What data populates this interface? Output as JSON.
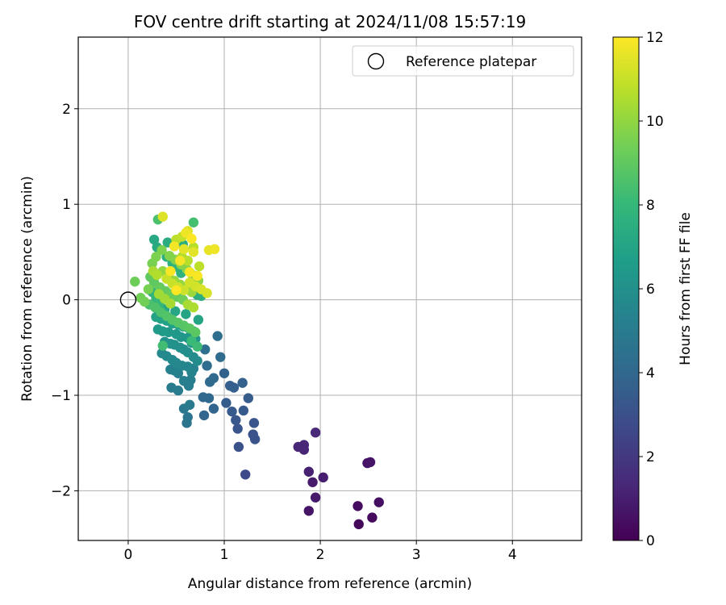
{
  "chart_data": {
    "type": "scatter",
    "title": "FOV centre drift starting at 2024/11/08 15:57:19",
    "xlabel": "Angular distance from reference (arcmin)",
    "ylabel": "Rotation from reference (arcmin)",
    "xlim": [
      -0.52,
      4.72
    ],
    "ylim": [
      -2.52,
      2.75
    ],
    "xticks": [
      0,
      1,
      2,
      3,
      4
    ],
    "yticks": [
      -2,
      -1,
      0,
      1,
      2
    ],
    "grid": true,
    "legend": {
      "location": "upper right",
      "entries": [
        "Reference platepar"
      ]
    },
    "reference_point": {
      "x": 0,
      "y": 0,
      "label": "Reference platepar"
    },
    "colorbar": {
      "label": "Hours from first FF file",
      "range": [
        0,
        12
      ],
      "ticks": [
        0,
        2,
        4,
        6,
        8,
        10,
        12
      ],
      "colormap": "viridis",
      "stops": [
        "#440154",
        "#482878",
        "#3e4989",
        "#31688e",
        "#26828e",
        "#1f9e89",
        "#35b779",
        "#6ece58",
        "#b5de2b",
        "#fde725"
      ]
    },
    "points": [
      [
        2.4,
        -2.35,
        0.2
      ],
      [
        2.54,
        -2.28,
        0.3
      ],
      [
        2.39,
        -2.16,
        0.4
      ],
      [
        2.61,
        -2.12,
        0.5
      ],
      [
        1.95,
        -2.07,
        0.8
      ],
      [
        1.88,
        -2.21,
        0.7
      ],
      [
        1.92,
        -1.91,
        0.9
      ],
      [
        2.03,
        -1.86,
        1.0
      ],
      [
        1.88,
        -1.8,
        1.1
      ],
      [
        2.49,
        -1.71,
        0.6
      ],
      [
        2.52,
        -1.7,
        0.7
      ],
      [
        1.83,
        -1.57,
        1.2
      ],
      [
        1.77,
        -1.54,
        1.3
      ],
      [
        1.83,
        -1.52,
        1.3
      ],
      [
        1.95,
        -1.39,
        1.4
      ],
      [
        1.22,
        -1.83,
        2.7
      ],
      [
        1.15,
        -1.54,
        3.0
      ],
      [
        1.32,
        -1.46,
        3.1
      ],
      [
        1.3,
        -1.41,
        3.1
      ],
      [
        1.14,
        -1.35,
        3.2
      ],
      [
        1.31,
        -1.29,
        3.2
      ],
      [
        1.12,
        -1.26,
        3.3
      ],
      [
        1.2,
        -1.16,
        3.4
      ],
      [
        1.08,
        -1.17,
        3.4
      ],
      [
        1.25,
        -1.03,
        3.5
      ],
      [
        1.02,
        -1.08,
        3.5
      ],
      [
        1.06,
        -0.9,
        3.6
      ],
      [
        1.1,
        -0.92,
        3.6
      ],
      [
        1.19,
        -0.87,
        3.7
      ],
      [
        1.0,
        -0.77,
        3.8
      ],
      [
        0.89,
        -1.14,
        3.9
      ],
      [
        0.79,
        -1.21,
        3.9
      ],
      [
        0.84,
        -1.03,
        4.0
      ],
      [
        0.78,
        -1.02,
        4.0
      ],
      [
        0.89,
        -0.82,
        4.1
      ],
      [
        0.85,
        -0.86,
        4.1
      ],
      [
        0.82,
        -0.69,
        4.2
      ],
      [
        0.96,
        -0.6,
        4.2
      ],
      [
        0.93,
        -0.38,
        4.3
      ],
      [
        0.8,
        -0.52,
        4.3
      ],
      [
        0.61,
        -1.29,
        4.6
      ],
      [
        0.62,
        -1.23,
        4.7
      ],
      [
        0.58,
        -1.14,
        4.8
      ],
      [
        0.64,
        -1.1,
        4.9
      ],
      [
        0.52,
        -0.95,
        5.0
      ],
      [
        0.45,
        -0.92,
        5.0
      ],
      [
        0.63,
        -0.9,
        5.1
      ],
      [
        0.65,
        -0.84,
        5.1
      ],
      [
        0.58,
        -0.85,
        5.2
      ],
      [
        0.52,
        -0.77,
        5.2
      ],
      [
        0.48,
        -0.74,
        5.3
      ],
      [
        0.44,
        -0.73,
        5.3
      ],
      [
        0.66,
        -0.76,
        5.4
      ],
      [
        0.68,
        -0.72,
        5.4
      ],
      [
        0.62,
        -0.7,
        5.5
      ],
      [
        0.56,
        -0.69,
        5.5
      ],
      [
        0.5,
        -0.66,
        5.6
      ],
      [
        0.46,
        -0.63,
        5.6
      ],
      [
        0.4,
        -0.59,
        5.7
      ],
      [
        0.35,
        -0.56,
        5.7
      ],
      [
        0.72,
        -0.64,
        5.8
      ],
      [
        0.68,
        -0.6,
        5.8
      ],
      [
        0.62,
        -0.55,
        5.9
      ],
      [
        0.58,
        -0.52,
        5.9
      ],
      [
        0.54,
        -0.5,
        6.0
      ],
      [
        0.48,
        -0.47,
        6.0
      ],
      [
        0.44,
        -0.46,
        6.1
      ],
      [
        0.38,
        -0.44,
        6.1
      ],
      [
        0.66,
        -0.45,
        6.2
      ],
      [
        0.7,
        -0.41,
        6.2
      ],
      [
        0.62,
        -0.4,
        6.3
      ],
      [
        0.55,
        -0.39,
        6.3
      ],
      [
        0.5,
        -0.36,
        6.4
      ],
      [
        0.42,
        -0.34,
        6.4
      ],
      [
        0.36,
        -0.33,
        6.5
      ],
      [
        0.31,
        -0.31,
        6.5
      ],
      [
        0.68,
        -0.33,
        6.6
      ],
      [
        0.63,
        -0.3,
        6.6
      ],
      [
        0.57,
        -0.28,
        6.7
      ],
      [
        0.52,
        -0.26,
        6.7
      ],
      [
        0.46,
        -0.25,
        6.8
      ],
      [
        0.4,
        -0.22,
        6.8
      ],
      [
        0.34,
        -0.2,
        6.9
      ],
      [
        0.29,
        -0.18,
        6.9
      ],
      [
        0.73,
        -0.21,
        7.0
      ],
      [
        0.6,
        -0.15,
        7.0
      ],
      [
        0.49,
        -0.12,
        7.1
      ],
      [
        0.38,
        -0.1,
        7.1
      ],
      [
        0.27,
        0.63,
        7.2
      ],
      [
        0.41,
        0.6,
        7.3
      ],
      [
        0.57,
        0.58,
        7.4
      ],
      [
        0.3,
        0.55,
        7.3
      ],
      [
        0.72,
        0.05,
        7.4
      ],
      [
        0.76,
        0.04,
        7.5
      ],
      [
        0.4,
        0.45,
        7.6
      ],
      [
        0.46,
        0.38,
        7.6
      ],
      [
        0.52,
        0.34,
        7.7
      ],
      [
        0.55,
        0.28,
        7.7
      ],
      [
        0.25,
        0.08,
        7.8
      ],
      [
        0.29,
        0.02,
        7.9
      ],
      [
        0.33,
        -0.03,
        8.0
      ],
      [
        0.66,
        -0.43,
        8.1
      ],
      [
        0.72,
        -0.49,
        8.2
      ],
      [
        0.36,
        -0.48,
        8.3
      ],
      [
        0.68,
        0.81,
        8.4
      ],
      [
        0.31,
        0.84,
        8.5
      ],
      [
        0.22,
        -0.05,
        8.5
      ],
      [
        0.28,
        -0.08,
        8.6
      ],
      [
        0.34,
        -0.13,
        8.6
      ],
      [
        0.4,
        -0.17,
        8.7
      ],
      [
        0.46,
        -0.21,
        8.7
      ],
      [
        0.52,
        -0.24,
        8.8
      ],
      [
        0.58,
        -0.27,
        8.8
      ],
      [
        0.64,
        -0.3,
        8.9
      ],
      [
        0.7,
        -0.34,
        8.9
      ],
      [
        0.23,
        0.24,
        9.0
      ],
      [
        0.27,
        0.18,
        9.0
      ],
      [
        0.33,
        0.13,
        9.1
      ],
      [
        0.39,
        0.09,
        9.1
      ],
      [
        0.45,
        0.06,
        9.2
      ],
      [
        0.51,
        0.03,
        9.2
      ],
      [
        0.57,
        0.0,
        9.3
      ],
      [
        0.07,
        0.19,
        9.3
      ],
      [
        0.13,
        0.02,
        9.4
      ],
      [
        0.17,
        -0.02,
        9.4
      ],
      [
        0.21,
        0.11,
        9.5
      ],
      [
        0.25,
        0.38,
        9.5
      ],
      [
        0.29,
        0.45,
        9.6
      ],
      [
        0.35,
        0.52,
        9.6
      ],
      [
        0.43,
        0.46,
        9.7
      ],
      [
        0.49,
        0.42,
        9.7
      ],
      [
        0.55,
        0.37,
        9.8
      ],
      [
        0.61,
        0.32,
        9.8
      ],
      [
        0.67,
        0.26,
        9.9
      ],
      [
        0.73,
        0.2,
        9.9
      ],
      [
        0.36,
        0.3,
        10.0
      ],
      [
        0.42,
        0.25,
        10.0
      ],
      [
        0.48,
        0.2,
        10.1
      ],
      [
        0.54,
        0.16,
        10.1
      ],
      [
        0.6,
        0.12,
        10.2
      ],
      [
        0.66,
        0.08,
        10.2
      ],
      [
        0.32,
        0.06,
        10.3
      ],
      [
        0.38,
        0.01,
        10.3
      ],
      [
        0.44,
        -0.04,
        10.4
      ],
      [
        0.62,
        -0.05,
        10.4
      ],
      [
        0.68,
        -0.08,
        10.5
      ],
      [
        0.26,
        0.3,
        10.5
      ],
      [
        0.3,
        0.26,
        10.6
      ],
      [
        0.56,
        0.45,
        10.6
      ],
      [
        0.62,
        0.41,
        10.7
      ],
      [
        0.68,
        0.55,
        10.7
      ],
      [
        0.74,
        0.35,
        10.8
      ],
      [
        0.5,
        0.63,
        10.8
      ],
      [
        0.56,
        0.66,
        10.9
      ],
      [
        0.4,
        0.22,
        11.0
      ],
      [
        0.46,
        0.17,
        11.0
      ],
      [
        0.52,
        0.13,
        11.1
      ],
      [
        0.58,
        0.1,
        11.1
      ],
      [
        0.64,
        0.18,
        11.2
      ],
      [
        0.7,
        0.14,
        11.2
      ],
      [
        0.76,
        0.11,
        11.3
      ],
      [
        0.82,
        0.07,
        11.3
      ],
      [
        0.36,
        0.87,
        11.4
      ],
      [
        0.62,
        0.72,
        11.4
      ],
      [
        0.58,
        0.53,
        11.5
      ],
      [
        0.68,
        0.5,
        11.5
      ],
      [
        0.84,
        0.52,
        11.6
      ],
      [
        0.9,
        0.53,
        11.7
      ],
      [
        0.6,
        0.7,
        11.7
      ],
      [
        0.48,
        0.56,
        11.8
      ],
      [
        0.54,
        0.41,
        11.8
      ],
      [
        0.64,
        0.29,
        11.9
      ],
      [
        0.72,
        0.25,
        11.9
      ],
      [
        0.44,
        0.3,
        11.9
      ],
      [
        0.5,
        0.1,
        12.0
      ],
      [
        0.66,
        0.64,
        12.0
      ]
    ]
  }
}
